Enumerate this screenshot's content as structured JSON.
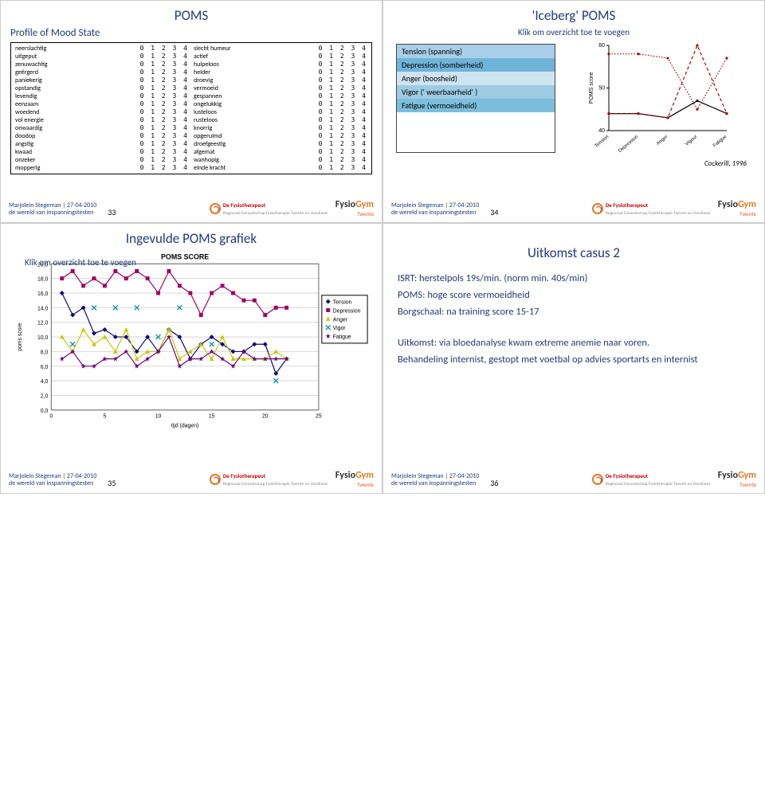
{
  "slides": {
    "s33": {
      "title": "POMS",
      "subtitle": "Profile of Mood State",
      "num": "33",
      "poms_left": [
        "neerslachtig",
        "uitgeput",
        "zenuwachtig",
        "geërgerd",
        "paniekerig",
        "opstandig",
        "levendig",
        "eenzaam",
        "woedend",
        "vol energie",
        "onwaardig",
        "doodop",
        "angstig",
        "kwaad",
        "onzeker",
        "mopperig"
      ],
      "poms_right": [
        "slecht humeur",
        "actief",
        "hulpeloos",
        "helder",
        "droevig",
        "vermoeid",
        "gespannen",
        "ongelukkig",
        "lusteloos",
        "rusteloos",
        "knorrig",
        "opgeruimd",
        "droefgeestig",
        "afgemat",
        "wanhopig",
        "einde kracht"
      ],
      "scale": "0 1 2 3 4"
    },
    "s34": {
      "title": "'Iceberg' POMS",
      "klik": "Klik om overzicht toe te voegen",
      "items": [
        "Tension (spanning)",
        "Depression (somberheid)",
        "Anger (boosheid)",
        "Vigor (' weerbaarheid' )",
        "Fatigue (vermoeidheid)"
      ],
      "item_colors": [
        "#a9cfe8",
        "#6fb4d8",
        "#cfe4f1",
        "#9dcbe2",
        "#7cbedc"
      ],
      "cite": "Cockerill, 1996",
      "num": "34",
      "chart": {
        "ylabel": "POMS score",
        "yticks": [
          40,
          50,
          60
        ],
        "xlabels": [
          "Tension",
          "Depression",
          "Anger",
          "Vigour",
          "Fatigue"
        ],
        "line1": {
          "color": "#000000",
          "style": "solid",
          "pts": [
            44,
            44,
            43,
            47,
            44
          ]
        },
        "line2": {
          "color": "#b00000",
          "style": "dash",
          "pts": [
            44,
            44,
            43,
            60,
            44
          ]
        },
        "line3": {
          "color": "#b00000",
          "style": "dot",
          "pts": [
            58,
            58,
            57,
            45,
            57
          ]
        }
      }
    },
    "s35": {
      "title": "Ingevulde POMS grafiek",
      "klik": "Klik om overzicht toe te voegen",
      "num": "35",
      "chart": {
        "title": "POMS SCORE",
        "ylabel": "poms score",
        "xlabel": "tijd (dagen)",
        "ymin": 0,
        "ymax": 20,
        "ystep": 2,
        "xmin": 0,
        "xmax": 25,
        "xstep": 5,
        "yticklabels": [
          "0,0",
          "2,0",
          "4,0",
          "6,0",
          "8,0",
          "10,0",
          "12,0",
          "14,0",
          "16,0",
          "18,0",
          "20,0"
        ],
        "xticklabels": [
          "0",
          "5",
          "10",
          "15",
          "20",
          "25"
        ],
        "series": [
          {
            "name": "Tension",
            "color": "#0a0a7a",
            "marker": "diamond",
            "data": [
              16,
              13,
              14,
              10.5,
              11,
              10,
              10,
              8,
              10,
              8,
              11,
              10,
              7,
              9,
              10,
              9,
              8,
              8,
              9,
              9,
              5,
              7
            ]
          },
          {
            "name": "Depression",
            "color": "#a00060",
            "marker": "square",
            "data": [
              18,
              19,
              17,
              18,
              17,
              19,
              18,
              19,
              18,
              16,
              19,
              17,
              16,
              13,
              16,
              17,
              16,
              15,
              15,
              13,
              14,
              14
            ]
          },
          {
            "name": "Anger",
            "color": "#c8c800",
            "marker": "triangle",
            "data": [
              10,
              8,
              11,
              9,
              10,
              8,
              11,
              7,
              8,
              8,
              11,
              7,
              8,
              9,
              7,
              10,
              7,
              7,
              7,
              7,
              8,
              7
            ]
          },
          {
            "name": "Vigor",
            "color": "#0090b0",
            "marker": "x",
            "data": [
              null,
              9,
              null,
              14,
              null,
              14,
              null,
              14,
              null,
              10,
              null,
              14,
              null,
              null,
              9,
              null,
              null,
              null,
              null,
              null,
              4,
              null
            ]
          },
          {
            "name": "Fatigue",
            "color": "#700080",
            "marker": "star",
            "data": [
              7,
              8,
              6,
              6,
              7,
              7,
              8,
              6,
              7,
              8,
              10,
              6,
              7,
              7,
              8,
              7,
              6,
              8,
              7,
              7,
              7,
              7
            ]
          }
        ]
      }
    },
    "s36": {
      "title": "Uitkomst casus 2",
      "num": "36",
      "lines": [
        "ISRT: herstelpols 19s/min. (norm min. 40s/min)",
        "POMS: hoge score vermoeidheid",
        "Borgschaal: na training score 15-17",
        "",
        "Uitkomst: via bloedanalyse kwam extreme anemie naar voren.",
        "Behandeling internist, gestopt met voetbal op advies sportarts en internist"
      ]
    },
    "footer": {
      "author1": "Marjolein Stegeman | 27-04-2010",
      "author2": "de wereld van inspanningstesten",
      "logo1a": "De Fysiotherapeut",
      "logo1b": "Regionaal Genootschap Fysiotherapie\nTwente en IJsselland",
      "logo2": "FysioGym",
      "logo2sub": "Twente"
    }
  }
}
